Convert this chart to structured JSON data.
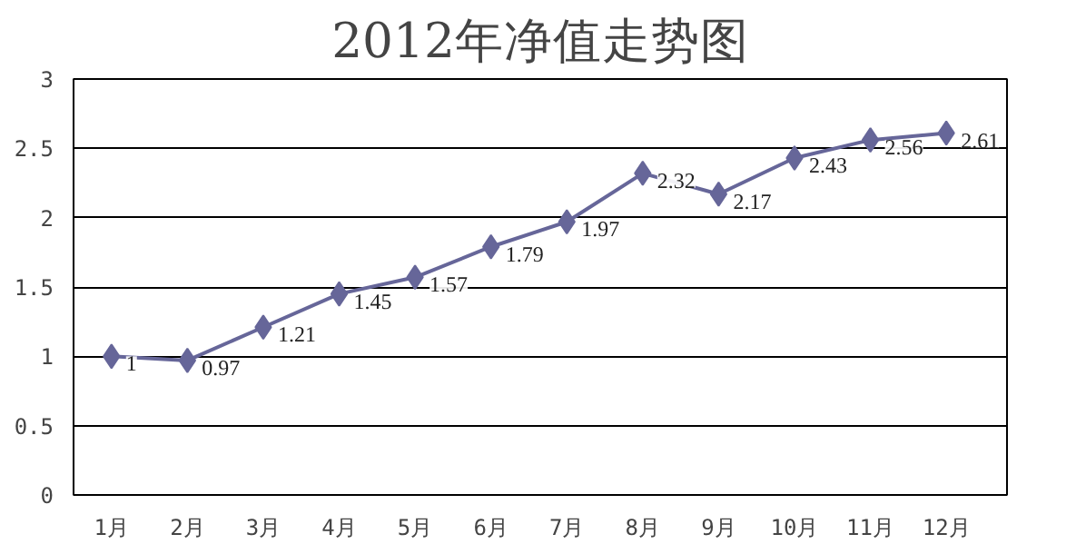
{
  "chart_data": {
    "type": "line",
    "title": "2012年净值走势图",
    "categories": [
      "1月",
      "2月",
      "3月",
      "4月",
      "5月",
      "6月",
      "7月",
      "8月",
      "9月",
      "10月",
      "11月",
      "12月"
    ],
    "series": [
      {
        "color": "#666699",
        "values": [
          1,
          0.97,
          1.21,
          1.45,
          1.57,
          1.79,
          1.97,
          2.32,
          2.17,
          2.43,
          2.56,
          2.61
        ]
      }
    ],
    "ylim": [
      0,
      3
    ],
    "yticks": [
      0,
      0.5,
      1,
      1.5,
      2,
      2.5,
      3
    ],
    "grid": "y",
    "marker": "diamond",
    "line_style": "solid",
    "data_labels": true
  }
}
